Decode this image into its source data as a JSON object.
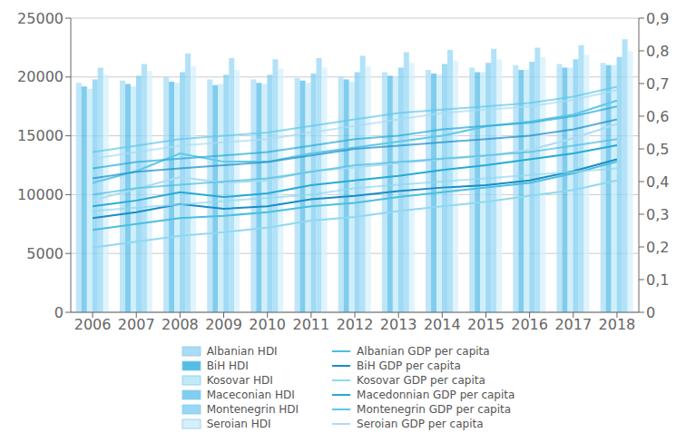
{
  "chart_data": {
    "type": "bar",
    "categories": [
      "2006",
      "2007",
      "2008",
      "2009",
      "2010",
      "2011",
      "2012",
      "2013",
      "2014",
      "2015",
      "2016",
      "2017",
      "2018"
    ],
    "series": [
      {
        "type": "bar",
        "name": "Albanian HDI",
        "color": "#aadcf5",
        "values": [
          19500,
          19700,
          20000,
          19800,
          19800,
          19900,
          20000,
          20400,
          20600,
          20800,
          21000,
          21100,
          21200
        ]
      },
      {
        "type": "bar",
        "name": "BiH HDI",
        "color": "#55bce8",
        "values": [
          19200,
          19400,
          19600,
          19300,
          19500,
          19700,
          19800,
          20100,
          20300,
          20400,
          20600,
          20800,
          21000
        ]
      },
      {
        "type": "bar",
        "name": "Kosovar HDI",
        "color": "#c0eaf8",
        "values": [
          19000,
          19200,
          19500,
          19400,
          19400,
          19500,
          19600,
          20000,
          20200,
          20400,
          20600,
          20800,
          21000
        ]
      },
      {
        "type": "bar",
        "name": "Maceconian HDI",
        "color": "#80cef0",
        "values": [
          19800,
          20100,
          20400,
          20200,
          20200,
          20300,
          20400,
          20800,
          21100,
          21200,
          21300,
          21500,
          21700
        ]
      },
      {
        "type": "bar",
        "name": "Montenegrin HDI",
        "color": "#98d8f5",
        "values": [
          20800,
          21100,
          22000,
          21600,
          21500,
          21600,
          21800,
          22100,
          22300,
          22400,
          22500,
          22700,
          23200
        ]
      },
      {
        "type": "bar",
        "name": "Seroian HDI",
        "color": "#d5f0fc",
        "values": [
          20200,
          20500,
          20900,
          20600,
          20700,
          20800,
          20900,
          21200,
          21400,
          21500,
          21700,
          21900,
          22200
        ]
      },
      {
        "type": "line",
        "name": "Albanian GDP per capita",
        "color": "#4bbee0",
        "values": [
          7000,
          7500,
          8000,
          8200,
          8500,
          9000,
          9300,
          9800,
          10200,
          10600,
          11000,
          11800,
          12800
        ]
      },
      {
        "type": "line",
        "name": "BiH GDP per capita",
        "color": "#1a8cc8",
        "values": [
          8000,
          8500,
          9200,
          8800,
          9000,
          9600,
          9900,
          10300,
          10600,
          10800,
          11200,
          12000,
          13000
        ]
      },
      {
        "type": "line",
        "name": "Kosovar GDP per capita",
        "color": "#90d8f0",
        "values": [
          5500,
          6000,
          6500,
          6800,
          7200,
          7800,
          8100,
          8600,
          9000,
          9400,
          9900,
          10400,
          11200
        ]
      },
      {
        "type": "line",
        "name": "Macedonnian GDP per capita",
        "color": "#25aad8",
        "values": [
          9000,
          9500,
          10200,
          9800,
          10100,
          10800,
          11200,
          11600,
          12100,
          12500,
          13000,
          13500,
          14200
        ]
      },
      {
        "type": "line",
        "name": "Montenegrin GDP per capita",
        "color": "#60c8e8",
        "values": [
          11000,
          12000,
          13500,
          12800,
          12800,
          13500,
          14000,
          14500,
          15000,
          15800,
          16200,
          16800,
          18000
        ]
      },
      {
        "type": "line",
        "name": "Seroian GDP per capita",
        "color": "#aadcf5",
        "values": [
          9500,
          10500,
          11500,
          11000,
          11200,
          12000,
          12300,
          12700,
          13000,
          13300,
          13800,
          14800,
          16000
        ]
      },
      {
        "type": "line",
        "axis": "y2",
        "color": "#4bbee0",
        "values": [
          0.36,
          0.38,
          0.39,
          0.4,
          0.41,
          0.43,
          0.45,
          0.46,
          0.47,
          0.48,
          0.49,
          0.51,
          0.53
        ]
      },
      {
        "type": "line",
        "axis": "y2",
        "color": "#1a8cc8",
        "values": [
          0.41,
          0.43,
          0.44,
          0.45,
          0.46,
          0.48,
          0.5,
          0.51,
          0.52,
          0.53,
          0.54,
          0.56,
          0.59
        ]
      },
      {
        "type": "line",
        "axis": "y2",
        "color": "#90d8f0",
        "values": [
          0.31,
          0.32,
          0.33,
          0.34,
          0.35,
          0.36,
          0.38,
          0.39,
          0.4,
          0.41,
          0.42,
          0.43,
          0.44
        ]
      },
      {
        "type": "line",
        "axis": "y2",
        "color": "#25aad8",
        "values": [
          0.44,
          0.46,
          0.47,
          0.48,
          0.49,
          0.51,
          0.53,
          0.54,
          0.56,
          0.57,
          0.58,
          0.6,
          0.63
        ]
      },
      {
        "type": "line",
        "axis": "y2",
        "color": "#60c8e8",
        "values": [
          0.49,
          0.51,
          0.53,
          0.54,
          0.55,
          0.57,
          0.59,
          0.61,
          0.62,
          0.63,
          0.64,
          0.66,
          0.69
        ]
      },
      {
        "type": "line",
        "axis": "y2",
        "color": "#aadcf5",
        "values": [
          0.47,
          0.49,
          0.51,
          0.52,
          0.53,
          0.55,
          0.57,
          0.59,
          0.61,
          0.62,
          0.63,
          0.65,
          0.68
        ]
      }
    ],
    "ylim": [
      0,
      25000
    ],
    "yticks": [
      0,
      5000,
      10000,
      15000,
      20000,
      25000
    ],
    "y2lim": [
      0,
      0.9
    ],
    "y2ticks": [
      0,
      {
        "value": 0.1,
        "label": "0,1"
      },
      {
        "value": 0.2,
        "label": "0,2"
      },
      {
        "value": 0.3,
        "label": "0,3"
      },
      {
        "value": 0.4,
        "label": "0,4"
      },
      {
        "value": 0.5,
        "label": "0,5"
      },
      {
        "value": 0.6,
        "label": "0,6"
      },
      {
        "value": 0.7,
        "label": "0,7"
      },
      {
        "value": 0.8,
        "label": "0,8"
      },
      {
        "value": 0.9,
        "label": "0,9"
      }
    ],
    "grid": true,
    "legend": "bottom"
  }
}
